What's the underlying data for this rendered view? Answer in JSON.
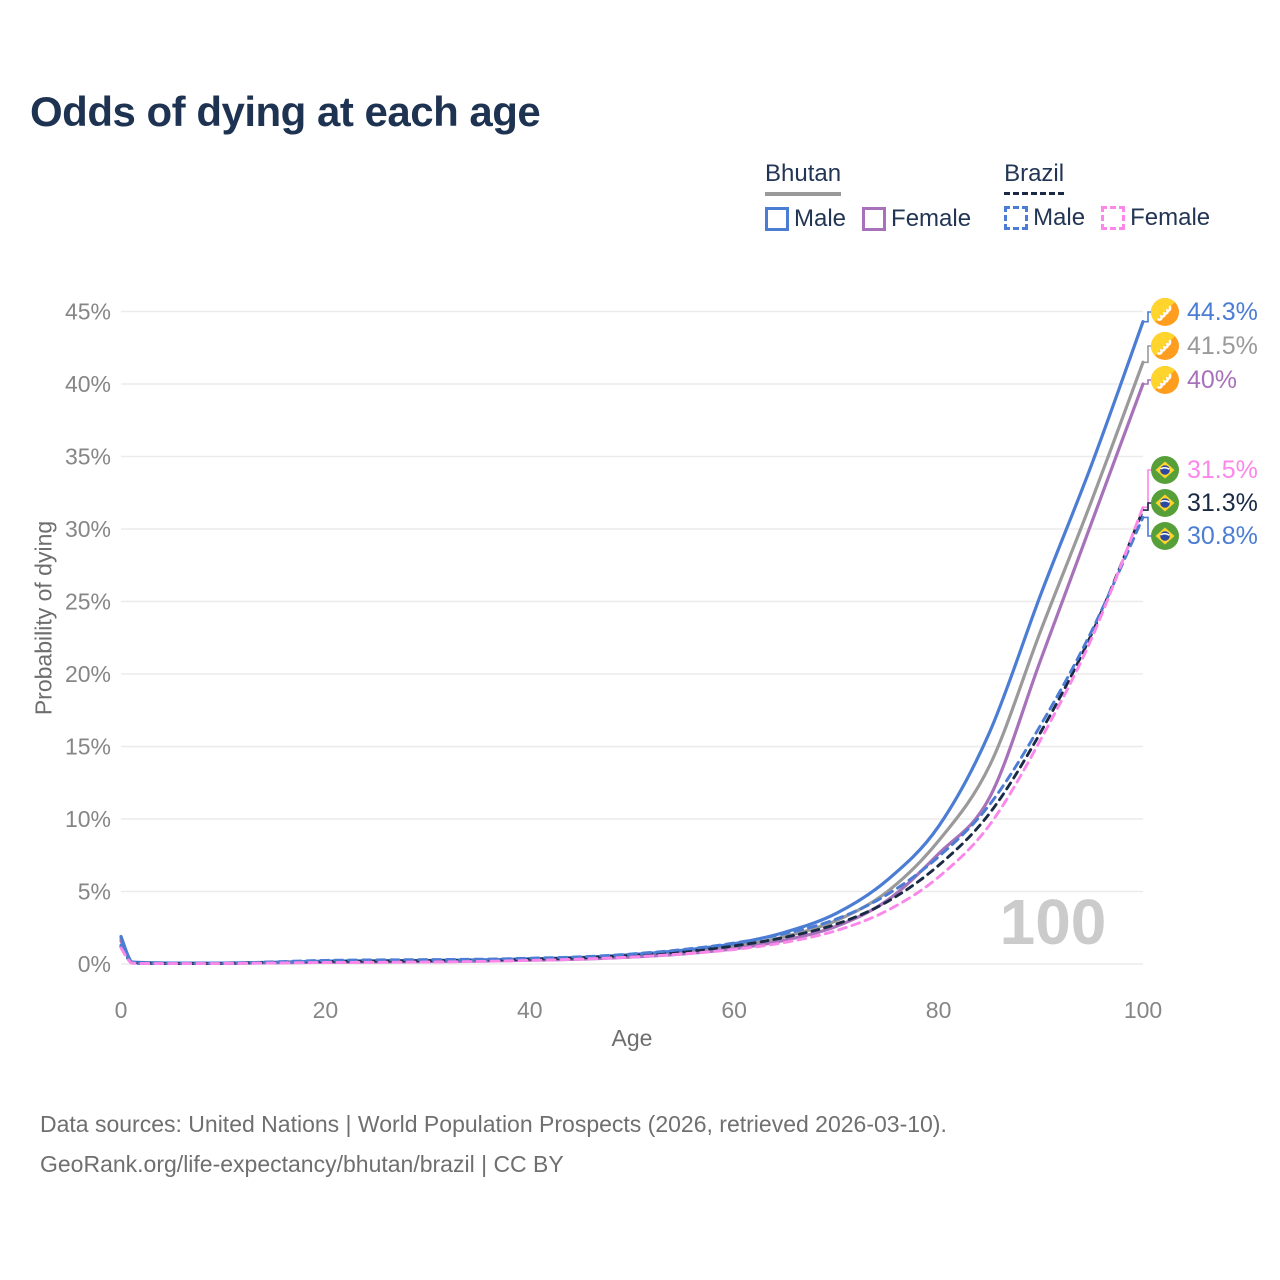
{
  "title": "Odds of dying at each age",
  "legend": {
    "groups": [
      {
        "label": "Bhutan",
        "line_style": "solid",
        "underline_color": "#9a9a9a",
        "items": [
          {
            "label": "Male",
            "color": "#4a7dd3",
            "style": "solid"
          },
          {
            "label": "Female",
            "color": "#a872ba",
            "style": "solid"
          }
        ]
      },
      {
        "label": "Brazil",
        "line_style": "dashed",
        "underline_color": "#1b2a44",
        "items": [
          {
            "label": "Male",
            "color": "#4a7dd3",
            "style": "dashed"
          },
          {
            "label": "Female",
            "color": "#fb87ea",
            "style": "dashed"
          }
        ]
      }
    ]
  },
  "chart_data": {
    "type": "line",
    "title": "Odds of dying at each age",
    "xlabel": "Age",
    "ylabel": "Probability of dying",
    "xlim": [
      0,
      100
    ],
    "ylim": [
      0,
      45
    ],
    "x_ticks": [
      0,
      20,
      40,
      60,
      80,
      100
    ],
    "y_ticks_percent": [
      0,
      5,
      10,
      15,
      20,
      25,
      30,
      35,
      40,
      45
    ],
    "grid": "horizontal-only",
    "legend_position": "top-right",
    "age_cursor": "100",
    "x": [
      0,
      1,
      2,
      5,
      10,
      15,
      20,
      25,
      30,
      35,
      40,
      45,
      50,
      55,
      60,
      65,
      70,
      75,
      80,
      85,
      90,
      95,
      100
    ],
    "series": [
      {
        "name": "Bhutan Male",
        "country": "Bhutan",
        "sex": "Male",
        "style": "solid",
        "color": "#4a7dd3",
        "flag": "bhutan",
        "end_label": "44.3%",
        "values": [
          1.9,
          0.15,
          0.1,
          0.06,
          0.06,
          0.12,
          0.2,
          0.22,
          0.24,
          0.28,
          0.35,
          0.45,
          0.65,
          0.95,
          1.4,
          2.2,
          3.5,
          5.8,
          9.5,
          16.0,
          25.5,
          34.5,
          44.3
        ]
      },
      {
        "name": "Bhutan Both Sexes",
        "country": "Bhutan",
        "sex": "Both",
        "style": "solid",
        "color": "#9a9a9a",
        "flag": "bhutan",
        "end_label": "41.5%",
        "values": [
          1.75,
          0.14,
          0.09,
          0.055,
          0.055,
          0.1,
          0.16,
          0.18,
          0.2,
          0.24,
          0.3,
          0.4,
          0.55,
          0.8,
          1.2,
          1.9,
          3.0,
          5.0,
          8.5,
          13.7,
          23.0,
          32.0,
          41.5
        ]
      },
      {
        "name": "Bhutan Female",
        "country": "Bhutan",
        "sex": "Female",
        "style": "solid",
        "color": "#a872ba",
        "flag": "bhutan",
        "end_label": "40%",
        "values": [
          1.6,
          0.13,
          0.08,
          0.05,
          0.05,
          0.08,
          0.12,
          0.14,
          0.16,
          0.2,
          0.26,
          0.34,
          0.48,
          0.7,
          1.05,
          1.65,
          2.6,
          4.4,
          7.6,
          11.5,
          21.0,
          30.5,
          40.0
        ]
      },
      {
        "name": "Brazil Female",
        "country": "Brazil",
        "sex": "Female",
        "style": "dashed",
        "dash": "8 6",
        "color": "#fb87ea",
        "flag": "brazil",
        "end_label": "31.5%",
        "values": [
          1.1,
          0.07,
          0.04,
          0.03,
          0.035,
          0.07,
          0.1,
          0.12,
          0.14,
          0.18,
          0.25,
          0.34,
          0.48,
          0.7,
          1.0,
          1.5,
          2.3,
          3.7,
          6.0,
          9.6,
          15.5,
          22.5,
          31.5
        ]
      },
      {
        "name": "Brazil Both Sexes",
        "country": "Brazil",
        "sex": "Both",
        "style": "dashed",
        "dash": "7 6",
        "color": "#1b2a44",
        "flag": "brazil",
        "end_label": "31.3%",
        "values": [
          1.2,
          0.08,
          0.045,
          0.035,
          0.04,
          0.11,
          0.18,
          0.2,
          0.22,
          0.26,
          0.33,
          0.43,
          0.6,
          0.85,
          1.25,
          1.85,
          2.75,
          4.3,
          6.8,
          10.4,
          16.0,
          22.8,
          31.3
        ]
      },
      {
        "name": "Brazil Male",
        "country": "Brazil",
        "sex": "Male",
        "style": "dashed",
        "dash": "8 6",
        "color": "#4a7dd3",
        "flag": "brazil",
        "end_label": "30.8%",
        "values": [
          1.3,
          0.09,
          0.05,
          0.04,
          0.05,
          0.15,
          0.25,
          0.28,
          0.3,
          0.33,
          0.4,
          0.5,
          0.7,
          1.0,
          1.45,
          2.1,
          3.1,
          4.8,
          7.4,
          11.0,
          16.5,
          23.0,
          30.8
        ]
      }
    ]
  },
  "footer": {
    "line1": "Data sources: United Nations | World Population Prospects (2026, retrieved 2026-03-10).",
    "line2": "GeoRank.org/life-expectancy/bhutan/brazil | CC BY"
  }
}
